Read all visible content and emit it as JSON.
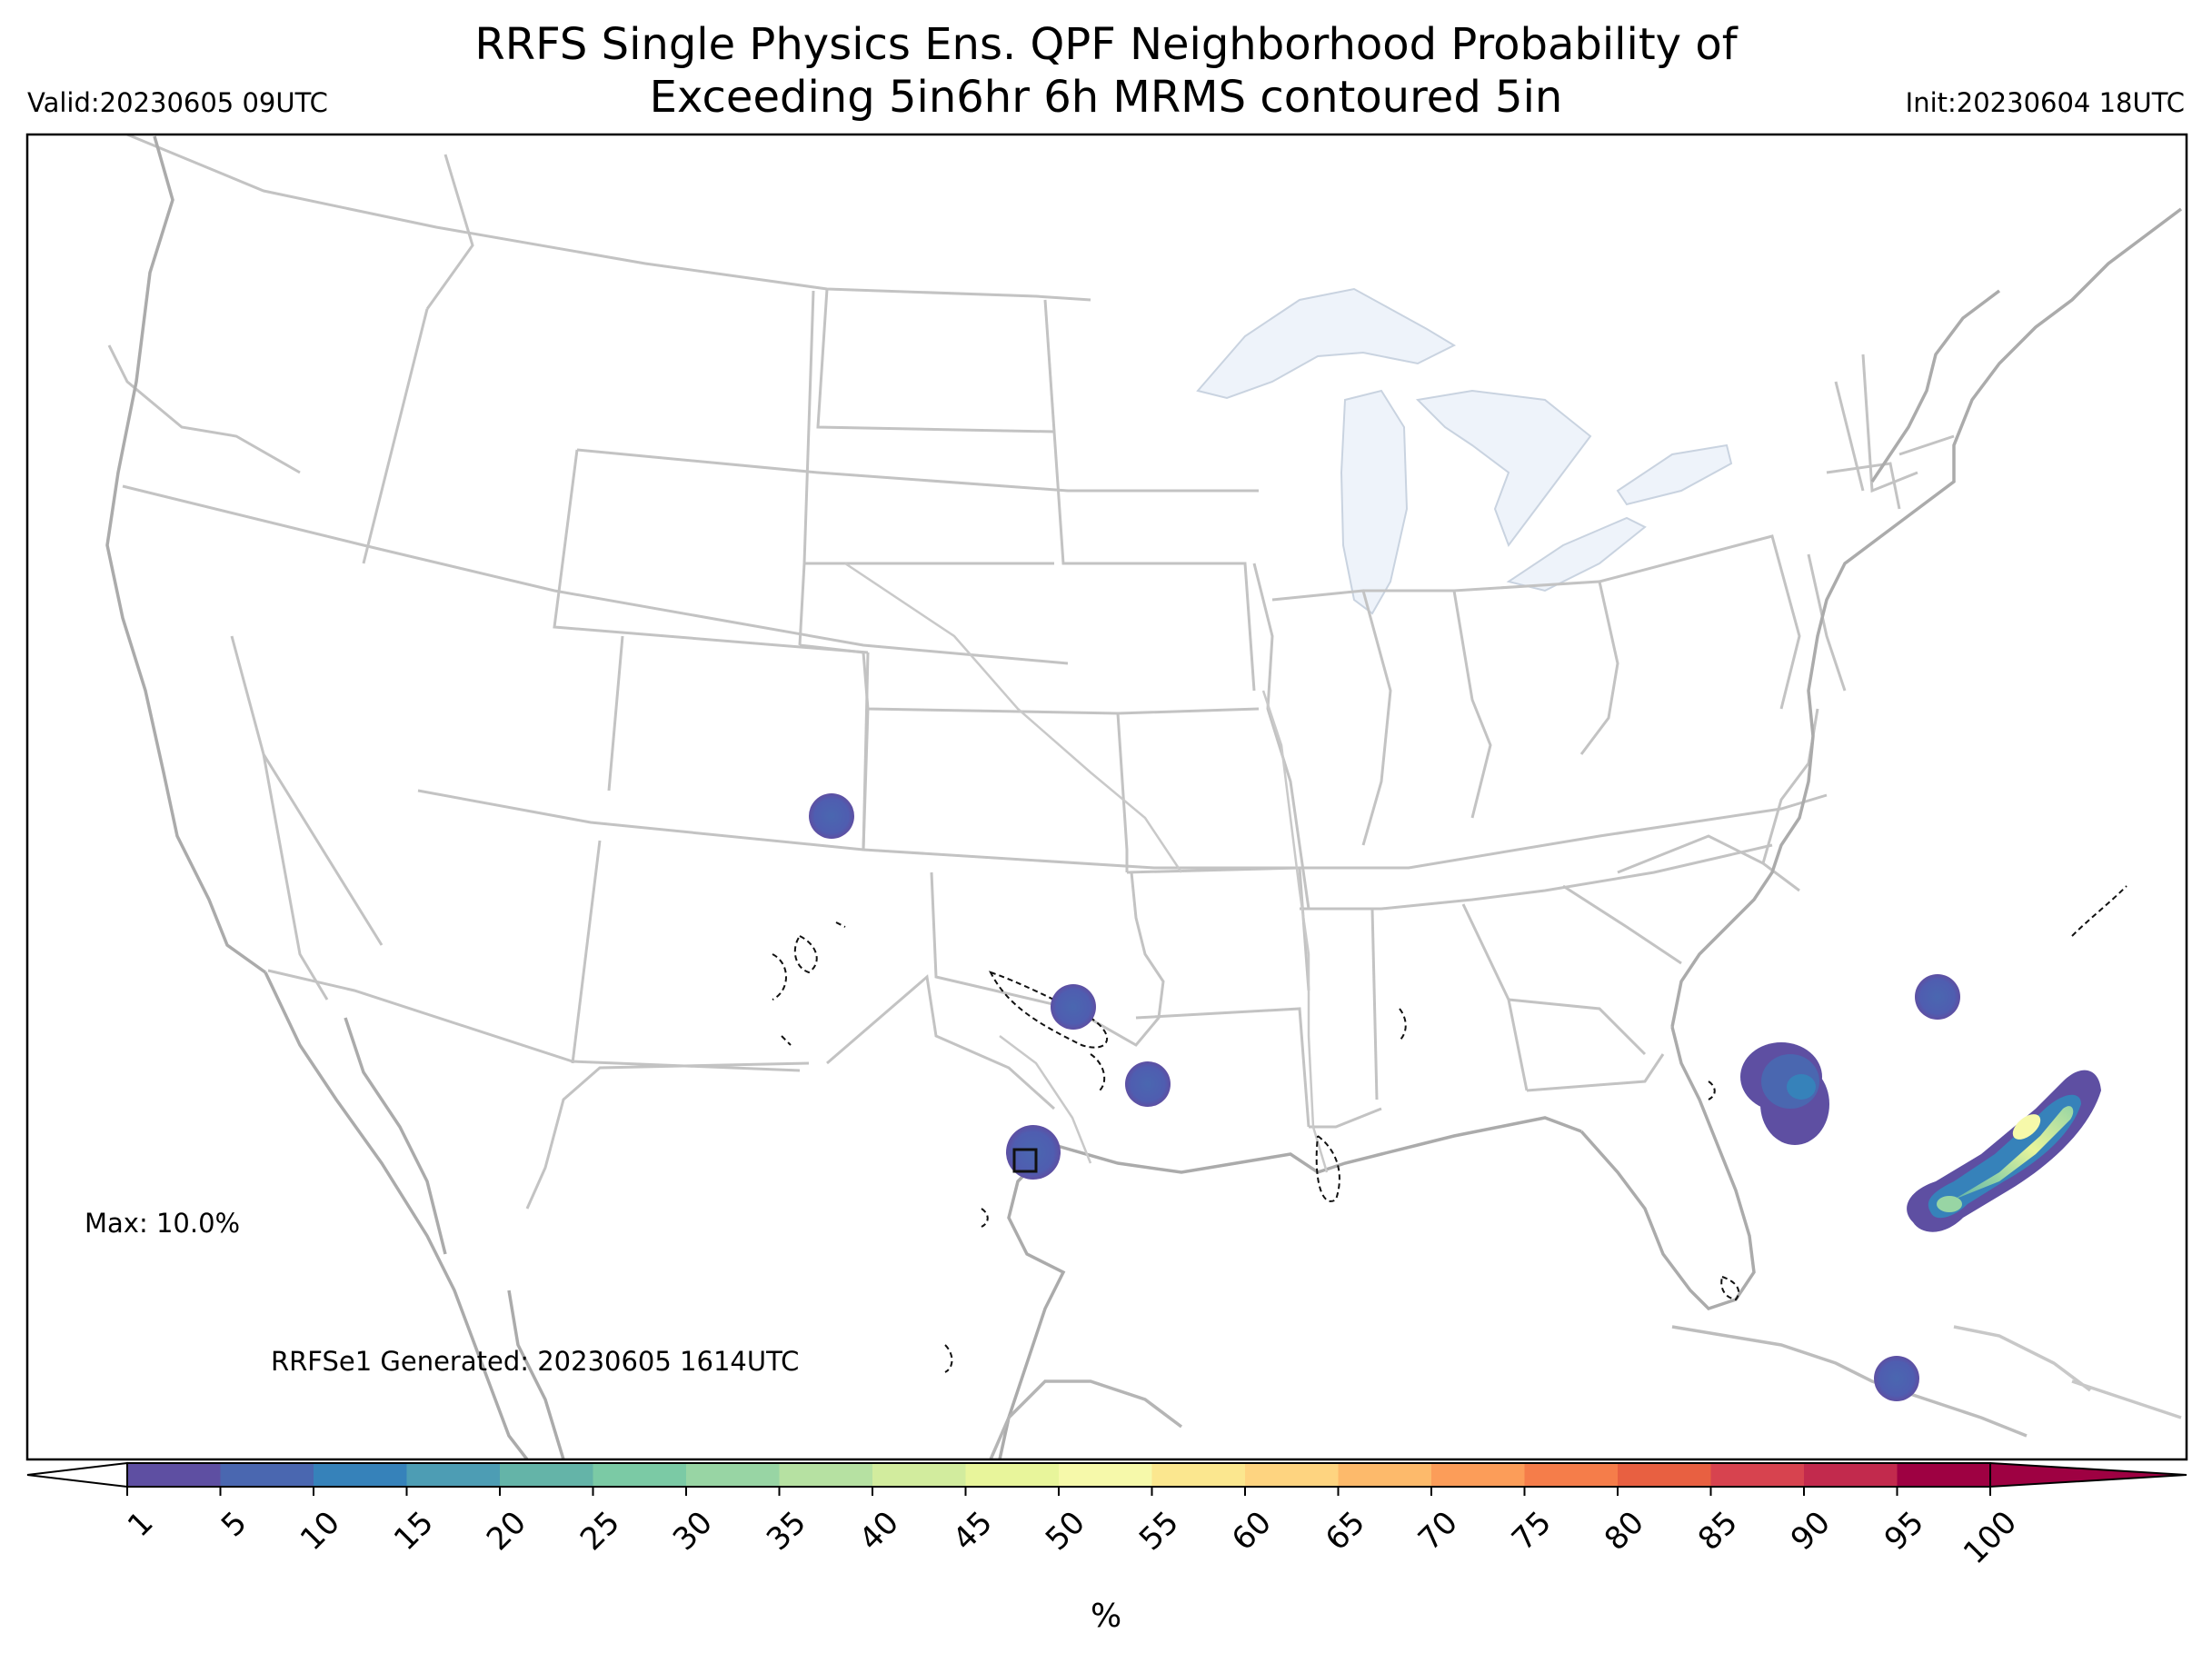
{
  "header": {
    "title_line1": "RRFS Single Physics Ens. QPF Neighborhood Probability of",
    "title_line2": "Exceeding 5in6hr 6h MRMS contoured 5in",
    "valid": "Valid:20230605 09UTC",
    "init": "Init:20230604 18UTC"
  },
  "annotations": {
    "max_label": "Max: 10.0%",
    "generated": "RRFSe1 Generated: 20230605 1614UTC"
  },
  "colorbar": {
    "unit": "%",
    "ticks": [
      "1",
      "5",
      "10",
      "15",
      "20",
      "25",
      "30",
      "35",
      "40",
      "45",
      "50",
      "55",
      "60",
      "65",
      "70",
      "75",
      "80",
      "85",
      "90",
      "95",
      "100"
    ],
    "colors": [
      "#5e4fa2",
      "#4a67b0",
      "#3682ba",
      "#4d9db4",
      "#64b4a8",
      "#7bcaa5",
      "#98d5a4",
      "#b6e1a2",
      "#d2ec9e",
      "#e8f59b",
      "#f6f9aa",
      "#fbe78f",
      "#fed480",
      "#fdba6b",
      "#fc9d59",
      "#f57d4a",
      "#e86041",
      "#d7434f",
      "#c22a4d",
      "#9e0142"
    ]
  },
  "colors": {
    "state_lines": "#bdbdbd",
    "coast_lines": "#a8a8a8",
    "lakes": "#eef3fa"
  },
  "probability_features": [
    {
      "name": "blob-eastern-colorado",
      "category": "1-5"
    },
    {
      "name": "blob-north-texas",
      "category": "1-5"
    },
    {
      "name": "blob-east-texas",
      "category": "1-5"
    },
    {
      "name": "blob-central-texas",
      "category": "1-5"
    },
    {
      "name": "blob-atlantic-offshore-georgia",
      "category": "5-15"
    },
    {
      "name": "blob-atlantic-north",
      "category": "1-5"
    },
    {
      "name": "band-atlantic-southeast",
      "category": "5-50"
    },
    {
      "name": "blob-bahamas",
      "category": "1-5"
    }
  ]
}
